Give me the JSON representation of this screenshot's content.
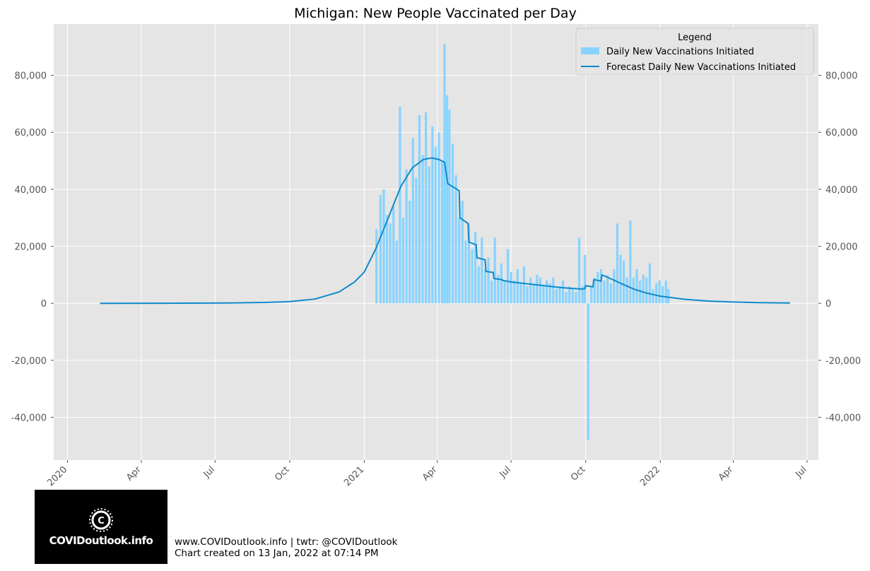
{
  "chart_data": {
    "type": "bar",
    "title": "Michigan: New People Vaccinated per Day",
    "xlabel": "",
    "ylabel": "",
    "ylim": [
      -55000,
      98000
    ],
    "yticks": [
      -40000,
      -20000,
      0,
      20000,
      40000,
      60000,
      80000
    ],
    "ytick_labels": [
      "-40,000",
      "-20,000",
      "0",
      "20,000",
      "40,000",
      "60,000",
      "80,000"
    ],
    "x_domain": [
      "2019-12-15",
      "2022-07-15"
    ],
    "xticks": [
      {
        "date": "2020-01-01",
        "label": "2020"
      },
      {
        "date": "2020-04-01",
        "label": "Apr"
      },
      {
        "date": "2020-07-01",
        "label": "Jul"
      },
      {
        "date": "2020-10-01",
        "label": "Oct"
      },
      {
        "date": "2021-01-01",
        "label": "2021"
      },
      {
        "date": "2021-04-01",
        "label": "Apr"
      },
      {
        "date": "2021-07-01",
        "label": "Jul"
      },
      {
        "date": "2021-10-01",
        "label": "Oct"
      },
      {
        "date": "2022-01-01",
        "label": "2022"
      },
      {
        "date": "2022-04-01",
        "label": "Apr"
      },
      {
        "date": "2022-07-01",
        "label": "Jul"
      }
    ],
    "legend": {
      "title": "Legend",
      "position": "top-right",
      "entries": [
        "Daily New Vaccinations Initiated",
        "Forecast Daily New Vaccinations Initiated"
      ]
    },
    "bar_color": "#87d3ff",
    "line_color": "#0d8acb",
    "series": [
      {
        "name": "Daily New Vaccinations Initiated",
        "type": "bar",
        "x": [
          "2021-01-16",
          "2021-01-21",
          "2021-01-25",
          "2021-01-29",
          "2021-02-02",
          "2021-02-06",
          "2021-02-10",
          "2021-02-14",
          "2021-02-18",
          "2021-02-22",
          "2021-02-26",
          "2021-03-02",
          "2021-03-06",
          "2021-03-10",
          "2021-03-14",
          "2021-03-18",
          "2021-03-22",
          "2021-03-26",
          "2021-03-30",
          "2021-04-03",
          "2021-04-07",
          "2021-04-10",
          "2021-04-13",
          "2021-04-16",
          "2021-04-20",
          "2021-04-24",
          "2021-04-28",
          "2021-05-02",
          "2021-05-06",
          "2021-05-10",
          "2021-05-14",
          "2021-05-18",
          "2021-05-22",
          "2021-05-26",
          "2021-05-30",
          "2021-06-03",
          "2021-06-07",
          "2021-06-11",
          "2021-06-15",
          "2021-06-19",
          "2021-06-23",
          "2021-06-27",
          "2021-07-01",
          "2021-07-05",
          "2021-07-09",
          "2021-07-13",
          "2021-07-17",
          "2021-07-21",
          "2021-07-25",
          "2021-07-29",
          "2021-08-02",
          "2021-08-06",
          "2021-08-10",
          "2021-08-14",
          "2021-08-18",
          "2021-08-22",
          "2021-08-26",
          "2021-08-30",
          "2021-09-03",
          "2021-09-07",
          "2021-09-11",
          "2021-09-15",
          "2021-09-19",
          "2021-09-23",
          "2021-09-27",
          "2021-09-30",
          "2021-10-04",
          "2021-10-08",
          "2021-10-12",
          "2021-10-16",
          "2021-10-20",
          "2021-10-24",
          "2021-10-28",
          "2021-11-01",
          "2021-11-05",
          "2021-11-09",
          "2021-11-13",
          "2021-11-17",
          "2021-11-21",
          "2021-11-25",
          "2021-11-29",
          "2021-12-03",
          "2021-12-07",
          "2021-12-11",
          "2021-12-15",
          "2021-12-19",
          "2021-12-23",
          "2021-12-27",
          "2021-12-31",
          "2022-01-04",
          "2022-01-08",
          "2022-01-11"
        ],
        "values": [
          26000,
          38000,
          40000,
          31000,
          28000,
          34000,
          22000,
          69000,
          30000,
          47000,
          36000,
          58000,
          44000,
          66000,
          52000,
          67000,
          48000,
          62000,
          55000,
          60000,
          50000,
          91000,
          73000,
          68000,
          56000,
          45000,
          30000,
          36000,
          22000,
          28000,
          19000,
          25000,
          13000,
          23000,
          12000,
          16000,
          8000,
          23000,
          10000,
          14000,
          8000,
          19000,
          11000,
          8000,
          12000,
          7000,
          13000,
          6000,
          9000,
          7000,
          10000,
          9000,
          6000,
          8000,
          7000,
          9000,
          5000,
          6000,
          8000,
          4000,
          6000,
          5000,
          4000,
          23000,
          6000,
          17000,
          -48000,
          6000,
          9000,
          11000,
          12000,
          8000,
          10000,
          7000,
          12000,
          28000,
          17000,
          15000,
          9000,
          29000,
          9000,
          12000,
          8000,
          10000,
          9000,
          14000,
          5000,
          7000,
          8000,
          6000,
          8000,
          5000
        ]
      },
      {
        "name": "Forecast Daily New Vaccinations Initiated",
        "type": "line",
        "x": [
          "2020-02-10",
          "2020-05-01",
          "2020-07-15",
          "2020-09-01",
          "2020-10-01",
          "2020-11-01",
          "2020-12-01",
          "2020-12-20",
          "2021-01-01",
          "2021-01-15",
          "2021-02-01",
          "2021-02-15",
          "2021-03-01",
          "2021-03-15",
          "2021-03-25",
          "2021-04-03",
          "2021-04-10",
          "2021-04-14",
          "2021-04-15",
          "2021-04-28",
          "2021-04-29",
          "2021-05-09",
          "2021-05-10",
          "2021-05-19",
          "2021-05-20",
          "2021-05-30",
          "2021-05-31",
          "2021-06-09",
          "2021-06-10",
          "2021-06-20",
          "2021-06-21",
          "2021-07-01",
          "2021-08-01",
          "2021-09-01",
          "2021-09-25",
          "2021-09-30",
          "2021-10-01",
          "2021-10-10",
          "2021-10-11",
          "2021-10-20",
          "2021-10-21",
          "2021-11-01",
          "2021-11-15",
          "2021-12-01",
          "2021-12-15",
          "2022-01-01",
          "2022-02-01",
          "2022-03-01",
          "2022-04-01",
          "2022-05-01",
          "2022-06-10"
        ],
        "values": [
          0,
          30,
          120,
          300,
          600,
          1500,
          4000,
          7500,
          11000,
          19000,
          31000,
          41000,
          47500,
          50500,
          51000,
          50500,
          49500,
          42000,
          41800,
          39500,
          30000,
          28000,
          21500,
          20500,
          16000,
          15300,
          11200,
          10800,
          8700,
          8300,
          8000,
          7500,
          6500,
          5500,
          5000,
          5100,
          6200,
          5800,
          8300,
          7800,
          10000,
          8600,
          6800,
          4800,
          3600,
          2500,
          1400,
          800,
          450,
          250,
          120
        ]
      }
    ]
  },
  "logo": {
    "text": "COVIDoutlook.info"
  },
  "footer": {
    "line1": "www.COVIDoutlook.info | twtr: @COVIDoutlook",
    "line2": "Chart created on 13 Jan, 2022 at 07:14 PM"
  }
}
